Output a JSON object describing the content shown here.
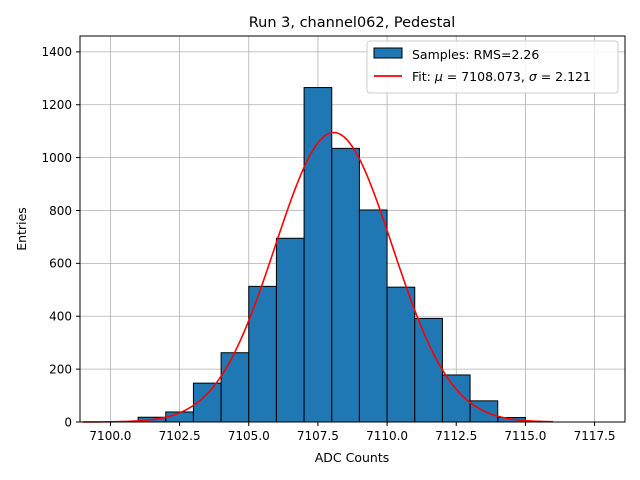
{
  "chart_data": {
    "type": "bar",
    "title": "Run 3, channel062, Pedestal",
    "xlabel": "ADC Counts",
    "ylabel": "Entries",
    "xlim": [
      7098.9,
      7118.6
    ],
    "ylim": [
      0,
      1460
    ],
    "xticks": [
      7100.0,
      7102.5,
      7105.0,
      7107.5,
      7110.0,
      7112.5,
      7115.0,
      7117.5
    ],
    "xtick_labels": [
      "7100.0",
      "7102.5",
      "7105.0",
      "7107.5",
      "7110.0",
      "7112.5",
      "7115.0",
      "7117.5"
    ],
    "yticks": [
      0,
      200,
      400,
      600,
      800,
      1000,
      1200,
      1400
    ],
    "ytick_labels": [
      "0",
      "200",
      "400",
      "600",
      "800",
      "1000",
      "1200",
      "1400"
    ],
    "grid": true,
    "legend_position": "top-right",
    "histogram": {
      "name": "Samples: RMS=2.26",
      "color": "#1f77b4",
      "edge_color": "#000000",
      "bin_edges": [
        7101.0,
        7102.0,
        7103.0,
        7104.0,
        7105.0,
        7106.0,
        7107.0,
        7108.0,
        7109.0,
        7110.0,
        7111.0,
        7112.0,
        7113.0,
        7114.0,
        7115.0
      ],
      "counts": [
        18,
        38,
        147,
        262,
        513,
        695,
        1265,
        1035,
        802,
        510,
        392,
        178,
        80,
        17
      ]
    },
    "fit": {
      "name": "Fit: μ = 7108.073, σ = 2.121",
      "label_prefix": "Fit: ",
      "mu_symbol": "μ",
      "mu_text": " = 7108.073, ",
      "sigma_symbol": "σ",
      "sigma_text": " = 2.121",
      "color": "#ff0000",
      "mu": 7108.073,
      "sigma": 2.121,
      "amplitude": 1095,
      "x_range": [
        7099.0,
        7116.0
      ]
    }
  }
}
